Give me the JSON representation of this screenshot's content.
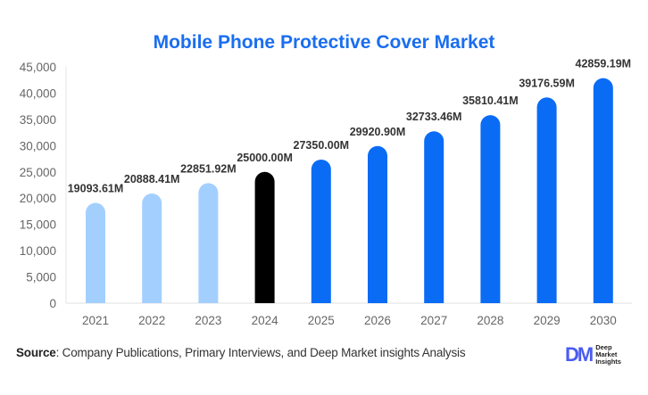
{
  "chart_data": {
    "type": "bar",
    "title": "Mobile Phone Protective Cover Market",
    "categories": [
      "2021",
      "2022",
      "2023",
      "2024",
      "2025",
      "2026",
      "2027",
      "2028",
      "2029",
      "2030"
    ],
    "values": [
      19093.61,
      20888.41,
      22851.92,
      25000.0,
      27350.0,
      29920.9,
      32733.46,
      35810.41,
      39176.59,
      42859.19
    ],
    "data_labels": [
      "19093.61M",
      "20888.41M",
      "22851.92M",
      "25000.00M",
      "27350.00M",
      "29920.90M",
      "32733.46M",
      "35810.41M",
      "39176.59M",
      "42859.19M"
    ],
    "ylim": [
      0,
      45000
    ],
    "yticks": [
      0,
      5000,
      10000,
      15000,
      20000,
      25000,
      30000,
      35000,
      40000,
      45000
    ],
    "ytick_labels": [
      "0",
      "5,000",
      "10,000",
      "15,000",
      "20,000",
      "25,000",
      "30,000",
      "35,000",
      "40,000",
      "45,000"
    ],
    "grid": false,
    "colors": {
      "historical": "#a3cfff",
      "base_year": "#000000",
      "forecast": "#0a6cf5",
      "title": "#1a6ef0"
    },
    "bar_color_groups": [
      "historical",
      "historical",
      "historical",
      "base_year",
      "forecast",
      "forecast",
      "forecast",
      "forecast",
      "forecast",
      "forecast"
    ]
  },
  "footer": {
    "source_label": "Source",
    "source_text": ": Company Publications, Primary Interviews, and Deep Market insights Analysis",
    "logo_mark": "DM",
    "logo_lines": [
      "Deep",
      "Market",
      "Insights"
    ]
  }
}
